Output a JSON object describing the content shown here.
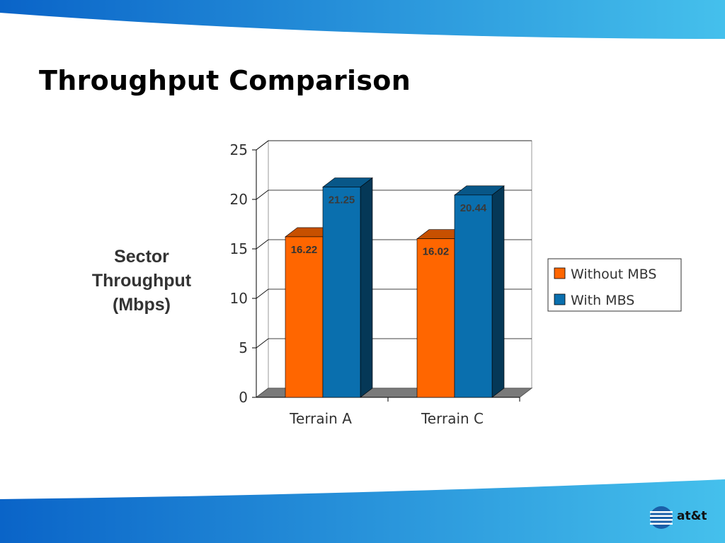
{
  "slide": {
    "title": "Throughput Comparison",
    "ylabel_lines": [
      "Sector",
      "Throughput",
      "(Mbps)"
    ],
    "logo_text": "at&t"
  },
  "colors": {
    "band_light": "#45c0ec",
    "band_dark": "#0a64c8",
    "orange": "#ff6600",
    "blue": "#0a6fae"
  },
  "chart_data": {
    "type": "bar",
    "style": "3d-clustered-column",
    "title": "",
    "xlabel": "",
    "ylabel": "Sector Throughput (Mbps)",
    "categories": [
      "Terrain A",
      "Terrain C"
    ],
    "series": [
      {
        "name": "Without MBS",
        "values": [
          16.22,
          16.02
        ],
        "labels": [
          "16.22",
          "16.02"
        ],
        "color": "#ff6600"
      },
      {
        "name": "With MBS",
        "values": [
          21.25,
          20.44
        ],
        "labels": [
          "21.25",
          "20.44"
        ],
        "color": "#0a6fae"
      }
    ],
    "ylim": [
      0,
      25
    ],
    "yticks": [
      "0",
      "5",
      "10",
      "15",
      "20",
      "25"
    ],
    "grid": true,
    "legend": "right"
  }
}
